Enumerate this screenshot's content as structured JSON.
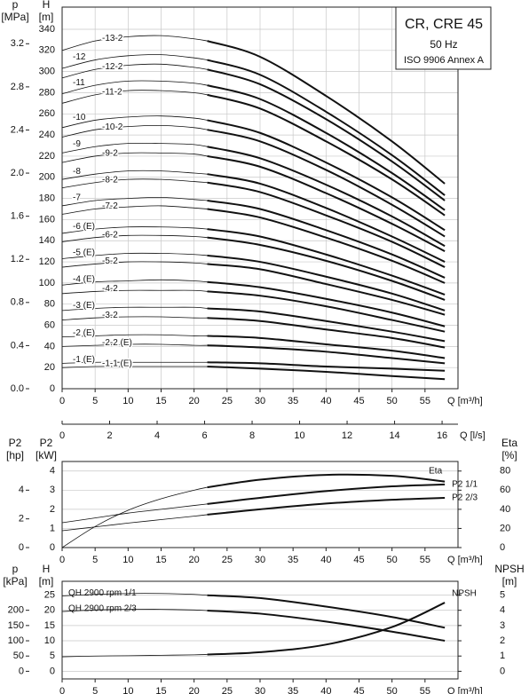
{
  "chart_data": [
    {
      "type": "line",
      "annotations": [
        "CR, CRE 45",
        "50 Hz",
        "ISO 9906 Annex A"
      ],
      "x": [
        0,
        5,
        10,
        15,
        20,
        22,
        30,
        40,
        50,
        58
      ],
      "bold_from_x": 22,
      "xlim": [
        0,
        60
      ],
      "xticks": [
        0,
        5,
        10,
        15,
        20,
        25,
        30,
        35,
        40,
        45,
        50,
        55
      ],
      "xlabel": "Q [m³/h]",
      "x2lim": [
        0,
        16.67
      ],
      "x2ticks": [
        0,
        2,
        4,
        6,
        8,
        10,
        12,
        14,
        16
      ],
      "x2label": "Q [l/s]",
      "ylabel": "H",
      "yunit": "[m]",
      "ylim": [
        0,
        361
      ],
      "yticks": [
        0,
        20,
        40,
        60,
        80,
        100,
        120,
        140,
        160,
        180,
        200,
        220,
        240,
        260,
        280,
        300,
        320,
        340
      ],
      "y2label": "p",
      "y2unit": "[MPa]",
      "y2lim": [
        0,
        3.54
      ],
      "y2ticks": [
        {
          "value": 0,
          "label": "0.0"
        },
        0.4,
        0.8,
        1.2,
        1.6,
        {
          "value": 2,
          "label": "2.0"
        },
        2.4,
        2.8,
        3.2
      ],
      "grid": "both",
      "color": "#111111",
      "series": [
        {
          "name": "-13-2",
          "values": [
            320,
            329,
            333,
            334,
            331,
            329,
            314,
            277,
            234,
            194
          ]
        },
        {
          "name": "-12",
          "values": [
            303,
            311,
            315,
            316,
            313,
            311,
            297,
            262,
            221,
            183
          ]
        },
        {
          "name": "-12-2",
          "values": [
            294,
            302,
            306,
            307,
            304,
            302,
            288,
            255,
            215,
            178
          ]
        },
        {
          "name": "-11",
          "values": [
            279,
            287,
            291,
            291,
            289,
            287,
            274,
            242,
            204,
            169
          ]
        },
        {
          "name": "-11-2",
          "values": [
            270,
            278,
            282,
            282,
            280,
            278,
            265,
            234,
            198,
            164
          ]
        },
        {
          "name": "-10",
          "values": [
            247,
            254,
            257,
            258,
            256,
            254,
            242,
            214,
            181,
            150
          ]
        },
        {
          "name": "-10-2",
          "values": [
            238,
            245,
            248,
            249,
            247,
            245,
            234,
            207,
            174,
            144
          ]
        },
        {
          "name": "-9",
          "values": [
            223,
            229,
            232,
            232,
            231,
            229,
            218,
            193,
            163,
            135
          ]
        },
        {
          "name": "-9-2",
          "values": [
            214,
            220,
            223,
            223,
            222,
            220,
            210,
            185,
            156,
            130
          ]
        },
        {
          "name": "-8",
          "values": [
            198,
            203,
            206,
            206,
            204,
            203,
            194,
            171,
            144,
            120
          ]
        },
        {
          "name": "-8-2",
          "values": [
            190,
            195,
            198,
            198,
            196,
            195,
            186,
            164,
            139,
            115
          ]
        },
        {
          "name": "-7",
          "values": [
            173,
            178,
            180,
            181,
            179,
            178,
            170,
            150,
            127,
            105
          ]
        },
        {
          "name": "-7-2",
          "values": [
            165,
            170,
            172,
            173,
            171,
            170,
            162,
            143,
            121,
            100
          ]
        },
        {
          "name": "-6 (E)",
          "values": [
            147,
            151,
            153,
            153,
            152,
            151,
            144,
            127,
            107,
            89
          ]
        },
        {
          "name": "-6-2",
          "values": [
            139,
            143,
            145,
            145,
            144,
            143,
            136,
            121,
            102,
            84
          ]
        },
        {
          "name": "-5 (E)",
          "values": [
            123,
            126,
            128,
            128,
            127,
            126,
            120,
            106,
            90,
            74
          ]
        },
        {
          "name": "-5-2",
          "values": [
            115,
            118,
            120,
            120,
            119,
            118,
            113,
            99,
            84,
            70
          ]
        },
        {
          "name": "-4 (E)",
          "values": [
            98,
            101,
            102,
            103,
            102,
            101,
            96,
            85,
            72,
            59
          ]
        },
        {
          "name": "-4-2",
          "values": [
            90,
            92,
            93,
            93,
            93,
            92,
            88,
            78,
            65,
            54
          ]
        },
        {
          "name": "-3 (E)",
          "values": [
            74,
            76,
            77,
            77,
            77,
            76,
            73,
            64,
            54,
            45
          ]
        },
        {
          "name": "-3-2",
          "values": [
            65,
            67,
            68,
            68,
            67,
            67,
            64,
            56,
            48,
            39
          ]
        },
        {
          "name": "-2 (E)",
          "values": [
            49,
            50,
            51,
            51,
            50,
            50,
            48,
            42,
            36,
            29
          ]
        },
        {
          "name": "-2-2 (E)",
          "values": [
            40,
            41,
            42,
            42,
            41,
            41,
            39,
            35,
            29,
            24
          ]
        },
        {
          "name": "-1 (E)",
          "values": [
            24,
            25,
            25,
            25,
            25,
            25,
            24,
            21,
            19,
            17
          ]
        },
        {
          "name": "-1-1 (E)",
          "values": [
            20,
            21,
            21,
            21,
            21,
            21,
            19,
            16,
            12,
            9
          ]
        }
      ]
    },
    {
      "type": "line",
      "x": [
        0,
        5,
        10,
        15,
        20,
        22,
        30,
        40,
        50,
        58
      ],
      "bold_from_x": 22,
      "xlim": [
        0,
        60
      ],
      "xticks": [
        0,
        5,
        10,
        15,
        20,
        25,
        30,
        35,
        40,
        45,
        50,
        55
      ],
      "xlabel": "Q [m³/h]",
      "ylabel": "P2",
      "yunit": "[kW]",
      "ylim": [
        0,
        4.5
      ],
      "yticks": [
        0,
        1,
        2,
        3,
        4
      ],
      "y3label": "P2",
      "y3unit": "[hp]",
      "y3lim": [
        0,
        6
      ],
      "y3ticks": [
        0,
        2,
        4
      ],
      "y2label": "Eta",
      "y2unit": "[%]",
      "y2lim": [
        0,
        90
      ],
      "y2ticks": [
        0,
        20,
        40,
        60,
        80
      ],
      "grid": "y",
      "color": "#111111",
      "series": [
        {
          "name": "Eta",
          "axis": "y2",
          "values": [
            0,
            22,
            39,
            51,
            60,
            63,
            71,
            76,
            75,
            69
          ]
        },
        {
          "name": "P2 1/1",
          "values": [
            1.3,
            1.55,
            1.8,
            2.0,
            2.2,
            2.28,
            2.6,
            2.95,
            3.2,
            3.3
          ]
        },
        {
          "name": "P2 2/3",
          "values": [
            0.88,
            1.08,
            1.28,
            1.46,
            1.64,
            1.72,
            2.0,
            2.3,
            2.5,
            2.6
          ]
        }
      ]
    },
    {
      "type": "line",
      "x": [
        0,
        5,
        10,
        15,
        20,
        22,
        30,
        40,
        50,
        58
      ],
      "bold_from_x": 22,
      "xlim": [
        0,
        60
      ],
      "xticks": [
        0,
        5,
        10,
        15,
        20,
        25,
        30,
        35,
        40,
        45,
        50,
        55
      ],
      "xlabel": "Q [m³/h]",
      "ylabel": "H",
      "yunit": "[m]",
      "ylim": [
        -2.5,
        29.5
      ],
      "yticks": [
        0,
        5,
        10,
        15,
        20,
        25
      ],
      "y3label": "p",
      "y3unit": "[kPa]",
      "y3lim": [
        -25,
        295
      ],
      "y3ticks": [
        0,
        50,
        100,
        150,
        200
      ],
      "y2label": "NPSH",
      "y2unit": "[m]",
      "y2lim": [
        -0.5,
        5.9
      ],
      "y2ticks": [
        0,
        1,
        2,
        3,
        4,
        5
      ],
      "grid": "y",
      "color": "#111111",
      "series": [
        {
          "name": "QH 2900 rpm 1/1",
          "values": [
            24.7,
            25.2,
            25.5,
            25.5,
            25.2,
            24.9,
            24.0,
            21.2,
            17.8,
            14.3
          ]
        },
        {
          "name": "QH 2900 rpm 2/3",
          "values": [
            19.6,
            20.1,
            20.3,
            20.3,
            20.1,
            19.9,
            18.9,
            16.3,
            13.0,
            10.0
          ]
        },
        {
          "name": "NPSH",
          "axis": "y2",
          "values": [
            0.95,
            1.0,
            1.02,
            1.05,
            1.08,
            1.1,
            1.25,
            1.75,
            2.9,
            4.5
          ]
        }
      ]
    }
  ]
}
